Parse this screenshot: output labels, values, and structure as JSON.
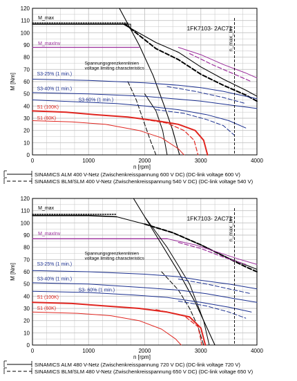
{
  "chart_data": [
    {
      "type": "line",
      "model": "1FK7103- 2AC71",
      "xlabel": "n [rpm]",
      "ylabel": "M [Nm]",
      "xlim": [
        0,
        4000
      ],
      "ylim": [
        0,
        120
      ],
      "xticks": [
        "0",
        "1000",
        "2000",
        "3000",
        "4000"
      ],
      "yticks": [
        "0",
        "10",
        "20",
        "30",
        "40",
        "50",
        "60",
        "70",
        "80",
        "90",
        "100",
        "110",
        "120"
      ],
      "grid": true,
      "annotations": {
        "m_max": "M_max",
        "m_maxinv": "M_maxInv",
        "nmaxinv": "n_max_Inv",
        "voltage_de": "Spannungsgrenzkennlinien",
        "voltage_en": "voltage limiting characteristics",
        "s3_25": "S3-25% (1 min.)",
        "s3_40": "S3-40% (1 min.)",
        "s3_60": "S3-60% (1 min.)",
        "s1_100k": "S1 (100K)",
        "s1_60k": "S1 (60K)"
      },
      "n_max_inv": 3600,
      "series": [
        {
          "role": "m_max",
          "color": "#000000",
          "style": "solid",
          "width": 1.6,
          "x": [
            0,
            1500,
            1700
          ],
          "y": [
            107,
            107,
            107
          ]
        },
        {
          "role": "m_max_step",
          "color": "#000000",
          "style": "solid",
          "width": 1.0,
          "x": [
            1700,
            1750,
            1750
          ],
          "y": [
            107,
            107,
            104
          ]
        },
        {
          "role": "m_max_dotted",
          "color": "#000000",
          "style": "dotted",
          "width": 1.4,
          "x": [
            0,
            1700
          ],
          "y": [
            108,
            108
          ]
        },
        {
          "role": "m_maxinv",
          "color": "#9b2d9b",
          "style": "solid",
          "width": 1.3,
          "x": [
            0,
            1900
          ],
          "y": [
            88,
            88
          ]
        },
        {
          "role": "hyperbola_solid",
          "color": "#000000",
          "style": "solid",
          "width": 1.1,
          "x": [
            1620,
            2200,
            2600,
            3000,
            3400,
            3800,
            4000
          ],
          "y": [
            107,
            92,
            84,
            72,
            62,
            53,
            48
          ]
        },
        {
          "role": "hyperbola_dashed",
          "color": "#000000",
          "style": "dashed",
          "width": 2.0,
          "x": [
            1650,
            2200,
            2600,
            3000,
            3400,
            3800,
            4000
          ],
          "y": [
            107,
            87,
            78,
            66,
            57,
            49,
            44
          ]
        },
        {
          "role": "maxinv_solid",
          "color": "#9b2d9b",
          "style": "solid",
          "width": 1.0,
          "x": [
            2600,
            3000,
            3400,
            3800,
            4000
          ],
          "y": [
            88,
            82,
            74,
            67,
            63
          ]
        },
        {
          "role": "maxinv_dashed",
          "color": "#9b2d9b",
          "style": "dashed",
          "width": 1.2,
          "x": [
            2800,
            3200,
            3600,
            3900
          ],
          "y": [
            83,
            74,
            66,
            60
          ]
        },
        {
          "role": "limit_solid",
          "color": "#000000",
          "style": "solid",
          "width": 1.1,
          "x": [
            1550,
            1900,
            2150,
            2350,
            2500,
            2620
          ],
          "y": [
            120,
            90,
            65,
            40,
            20,
            0
          ]
        },
        {
          "role": "limit_dashed",
          "color": "#000000",
          "style": "dashed",
          "width": 1.0,
          "x": [
            1700,
            1850,
            2000,
            2100,
            2200
          ],
          "y": [
            60,
            45,
            25,
            12,
            0
          ]
        },
        {
          "role": "limit_solid_b",
          "color": "#000000",
          "style": "solid",
          "width": 1.0,
          "x": [
            2000,
            2200,
            2320,
            2400
          ],
          "y": [
            50,
            36,
            20,
            0
          ]
        },
        {
          "role": "s3_25",
          "color": "#1a2f8f",
          "style": "solid",
          "width": 1.0,
          "x": [
            0,
            1000,
            2000,
            2600,
            3000,
            3400,
            3800,
            4000
          ],
          "y": [
            62,
            61,
            59,
            57,
            55,
            52,
            48,
            46
          ]
        },
        {
          "role": "s3_25_dashed",
          "color": "#1a2f8f",
          "style": "dashed",
          "width": 1.0,
          "x": [
            2400,
            2900,
            3400,
            3800
          ],
          "y": [
            56,
            52,
            47,
            42
          ]
        },
        {
          "role": "s3_40",
          "color": "#1a2f8f",
          "style": "solid",
          "width": 1.0,
          "x": [
            0,
            1000,
            2000,
            2500,
            3000,
            3500,
            4000
          ],
          "y": [
            51,
            50,
            48,
            46,
            44,
            41,
            38
          ]
        },
        {
          "role": "s3_60",
          "color": "#1a2f8f",
          "style": "solid",
          "width": 1.0,
          "x": [
            0,
            1000,
            1500,
            2000,
            2600,
            3100,
            3500,
            3800
          ],
          "y": [
            45,
            43,
            42,
            40,
            37,
            33,
            28,
            22
          ]
        },
        {
          "role": "s3_60_dashed",
          "color": "#1a2f8f",
          "style": "dashed",
          "width": 1.0,
          "x": [
            2200,
            2700,
            3100,
            3400,
            3600
          ],
          "y": [
            37,
            34,
            29,
            24,
            16
          ]
        },
        {
          "role": "s1_100k",
          "color": "#e0251f",
          "style": "solid",
          "width": 2.0,
          "x": [
            0,
            600,
            1100,
            1700,
            2200,
            2600,
            2900,
            3050,
            3120
          ],
          "y": [
            36,
            35,
            33,
            31,
            28,
            25,
            20,
            12,
            0
          ]
        },
        {
          "role": "s1_100k_dashed",
          "color": "#e0251f",
          "style": "dashed",
          "width": 1.2,
          "x": [
            2000,
            2400,
            2700,
            2880,
            2950
          ],
          "y": [
            29,
            26,
            20,
            12,
            0
          ]
        },
        {
          "role": "s1_60k",
          "color": "#e0251f",
          "style": "solid",
          "width": 1.0,
          "x": [
            0,
            700,
            1300,
            1900,
            2300,
            2600,
            2700
          ],
          "y": [
            28,
            27,
            25,
            20,
            14,
            5,
            0
          ]
        }
      ],
      "legend": [
        {
          "style": "solid",
          "text": "SINAMICS ALM 400 V-Netz (Zwischenkreisspannung 600 V DC) (DC-link voltage 600 V)"
        },
        {
          "style": "dashed",
          "text": "SINAMICS BLM/SLM 400 V-Netz (Zwischenkreisspannung 540 V DC) (DC-link voltage 540 V)"
        }
      ]
    },
    {
      "type": "line",
      "model": "1FK7103- 2AC71",
      "xlabel": "n [rpm]",
      "ylabel": "M [Nm]",
      "xlim": [
        0,
        4000
      ],
      "ylim": [
        0,
        120
      ],
      "xticks": [
        "0",
        "1000",
        "2000",
        "3000",
        "4000"
      ],
      "yticks": [
        "0",
        "10",
        "20",
        "30",
        "40",
        "50",
        "60",
        "70",
        "80",
        "90",
        "100",
        "110",
        "120"
      ],
      "grid": true,
      "annotations": {
        "m_max": "M_max",
        "m_maxinv": "M_maxInv",
        "nmaxinv": "n_max_Inv",
        "voltage_de": "Spannungsgrenzkennlinien",
        "voltage_en": "voltage limiting characteristics",
        "s3_25": "S3-25% (1 min.)",
        "s3_40": "S3-40% (1 min.)",
        "s3_60": "S3- 60% (1 min.)",
        "s1_100k": "S1 (100K)",
        "s1_60k": "S1 (60K)"
      },
      "n_max_inv": 3600,
      "series": [
        {
          "role": "m_max",
          "color": "#000000",
          "style": "solid",
          "width": 1.6,
          "x": [
            0,
            1000,
            1500
          ],
          "y": [
            106,
            106,
            105
          ]
        },
        {
          "role": "m_max_dotted",
          "color": "#000000",
          "style": "dotted",
          "width": 1.4,
          "x": [
            0,
            1500
          ],
          "y": [
            107,
            107
          ]
        },
        {
          "role": "m_maxinv",
          "color": "#9b2d9b",
          "style": "solid",
          "width": 1.3,
          "x": [
            0,
            2400
          ],
          "y": [
            87,
            87
          ]
        },
        {
          "role": "hyperbola_solid",
          "color": "#000000",
          "style": "solid",
          "width": 1.1,
          "x": [
            1500,
            2000,
            2500,
            3000,
            3500,
            4000
          ],
          "y": [
            105,
            99,
            92,
            82,
            71,
            62
          ]
        },
        {
          "role": "hyperbola_dashed",
          "color": "#000000",
          "style": "dashed",
          "width": 2.0,
          "x": [
            2000,
            2500,
            3000,
            3400,
            3800,
            4000
          ],
          "y": [
            99,
            92,
            82,
            73,
            64,
            60
          ]
        },
        {
          "role": "maxinv_solid",
          "color": "#9b2d9b",
          "style": "solid",
          "width": 1.0,
          "x": [
            2400,
            2900,
            3300,
            3700,
            4000
          ],
          "y": [
            87,
            82,
            76,
            70,
            66
          ]
        },
        {
          "role": "maxinv_dashed",
          "color": "#9b2d9b",
          "style": "dashed",
          "width": 1.2,
          "x": [
            2600,
            3000,
            3400,
            3800
          ],
          "y": [
            84,
            79,
            72,
            66
          ]
        },
        {
          "role": "limit_solid",
          "color": "#000000",
          "style": "solid",
          "width": 1.1,
          "x": [
            1800,
            2200,
            2600,
            2900,
            3100,
            3250
          ],
          "y": [
            120,
            90,
            60,
            35,
            15,
            0
          ]
        },
        {
          "role": "limit_solid_b",
          "color": "#000000",
          "style": "solid",
          "width": 1.0,
          "x": [
            2000,
            2400,
            2800,
            3050,
            3150
          ],
          "y": [
            105,
            80,
            50,
            20,
            0
          ]
        },
        {
          "role": "limit_dashed",
          "color": "#000000",
          "style": "dashed",
          "width": 1.0,
          "x": [
            2300,
            2600,
            2800,
            2950,
            3050
          ],
          "y": [
            60,
            45,
            30,
            15,
            0
          ]
        },
        {
          "role": "s3_25",
          "color": "#1a2f8f",
          "style": "solid",
          "width": 1.0,
          "x": [
            0,
            1000,
            2000,
            2600,
            3000,
            3500,
            4000
          ],
          "y": [
            61,
            60,
            58,
            56,
            53,
            50,
            46
          ]
        },
        {
          "role": "s3_25_dashed",
          "color": "#1a2f8f",
          "style": "dashed",
          "width": 1.0,
          "x": [
            2600,
            3100,
            3600,
            3900
          ],
          "y": [
            54,
            50,
            45,
            42
          ]
        },
        {
          "role": "s3_40",
          "color": "#1a2f8f",
          "style": "solid",
          "width": 1.0,
          "x": [
            0,
            1000,
            2000,
            2600,
            3100,
            3600,
            4000
          ],
          "y": [
            51,
            50,
            47,
            45,
            42,
            38,
            35
          ]
        },
        {
          "role": "s3_60",
          "color": "#1a2f8f",
          "style": "solid",
          "width": 1.0,
          "x": [
            0,
            1000,
            1800,
            2400,
            3000,
            3500,
            3900
          ],
          "y": [
            44,
            43,
            41,
            39,
            35,
            31,
            27
          ]
        },
        {
          "role": "s3_60_dashed",
          "color": "#1a2f8f",
          "style": "dashed",
          "width": 1.0,
          "x": [
            2600,
            3100,
            3500,
            3800
          ],
          "y": [
            36,
            32,
            27,
            22
          ]
        },
        {
          "role": "s1_100k",
          "color": "#e0251f",
          "style": "solid",
          "width": 2.0,
          "x": [
            0,
            700,
            1300,
            1900,
            2400,
            2800,
            3000,
            3080
          ],
          "y": [
            35,
            34,
            32,
            30,
            27,
            23,
            14,
            0
          ]
        },
        {
          "role": "s1_100k_dashed",
          "color": "#e0251f",
          "style": "dashed",
          "width": 1.2,
          "x": [
            2200,
            2700,
            2950,
            3020
          ],
          "y": [
            29,
            24,
            15,
            0
          ]
        },
        {
          "role": "s1_60k",
          "color": "#e0251f",
          "style": "solid",
          "width": 1.0,
          "x": [
            0,
            800,
            1400,
            1900,
            2300,
            2550,
            2650
          ],
          "y": [
            27,
            26,
            24,
            20,
            13,
            5,
            0
          ]
        }
      ],
      "legend": [
        {
          "style": "solid",
          "text": "SINAMICS ALM 480 V-Netz (Zwischenkreisspannung 720 V DC) (DC-link voltage 720 V)"
        },
        {
          "style": "dashed",
          "text": "SINAMICS BLM/SLM 480 V-Netz (Zwischenkreisspannung 650 V DC) (DC-link voltage 650 V)"
        }
      ]
    }
  ]
}
